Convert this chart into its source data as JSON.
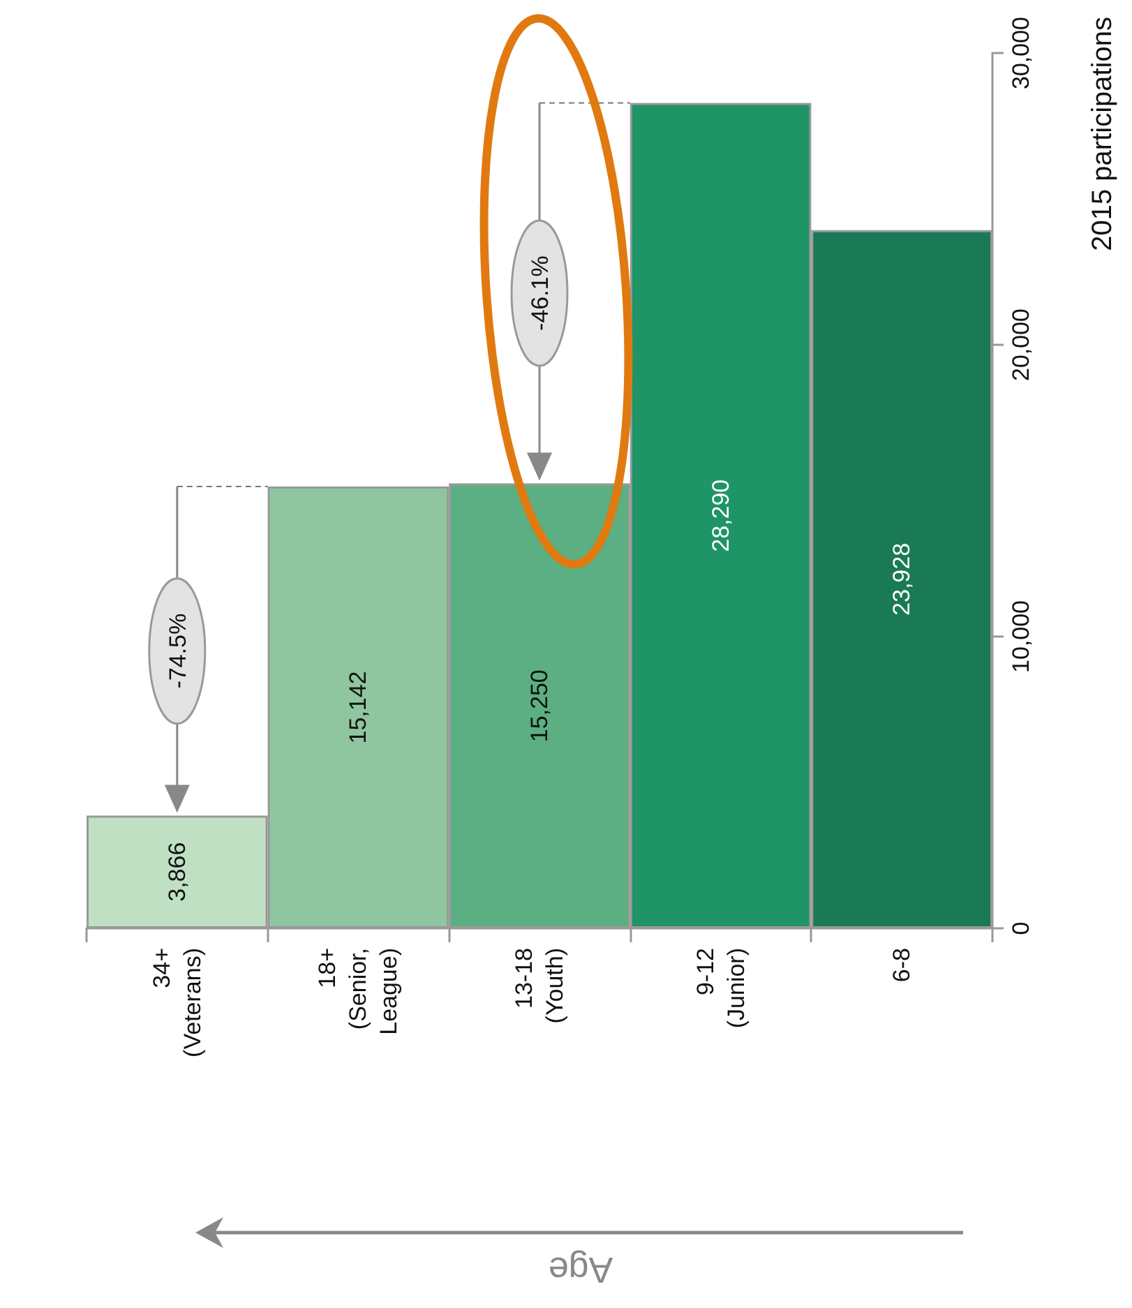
{
  "chart_data": {
    "type": "bar",
    "ylabel": "2015 participations",
    "categories": [
      "34+\n(Veterans)",
      "18+\n(Senior,\nLeague)",
      "13-18\n(Youth)",
      "9-12\n(Junior)",
      "6-8"
    ],
    "values": [
      3866,
      15142,
      15250,
      28290,
      23928
    ],
    "value_labels": [
      "3,866",
      "15,142",
      "15,250",
      "28,290",
      "23,928"
    ],
    "colors": [
      "#c0e0c4",
      "#8fc69f",
      "#5baf82",
      "#1f9467",
      "#1a7a56"
    ],
    "ylim": [
      0,
      30000
    ],
    "yticks": [
      {
        "value": 0,
        "label": "0"
      },
      {
        "value": 10000,
        "label": "10,000"
      },
      {
        "value": 20000,
        "label": "20,000"
      },
      {
        "value": 30000,
        "label": "30,000"
      }
    ],
    "annotations": [
      "-74.5%",
      "-46.1%",
      "Age"
    ]
  }
}
